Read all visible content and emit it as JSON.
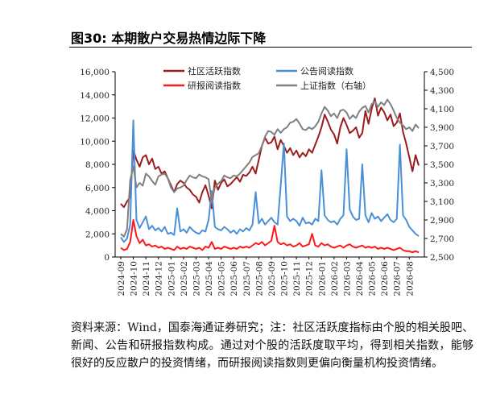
{
  "title": "图30: 本期散户交易热情边际下降",
  "chart_data": {
    "type": "line",
    "categories": [
      "2024-09",
      null,
      null,
      null,
      "2024-10",
      null,
      null,
      null,
      "2024-11",
      null,
      null,
      null,
      "2024-12",
      null,
      null,
      null,
      "2025-01",
      null,
      null,
      null,
      "2025-02",
      null,
      null,
      null,
      "2025-03",
      null,
      null,
      null,
      "2025-04",
      null,
      null,
      null,
      "2025-05",
      null,
      null,
      null,
      "2025-06",
      null,
      null,
      null,
      "2025-07",
      null,
      null,
      null,
      "2025-08",
      null,
      null,
      null,
      "2025-09",
      null,
      null,
      null,
      "2025-10",
      null,
      null,
      null,
      "2025-11",
      null,
      null,
      null,
      "2025-12",
      null,
      null,
      null,
      "2026-01",
      null,
      null,
      null,
      "2026-02",
      null,
      null,
      null,
      "2026-03",
      null,
      null,
      null,
      "2026-04",
      null,
      null,
      null,
      "2026-05",
      null,
      null,
      null,
      "2026-06",
      null,
      null,
      null,
      "2026-07",
      null,
      null,
      null,
      "2026-08",
      null,
      null,
      null
    ],
    "series": [
      {
        "name": "社区活跃指数",
        "color": "#9b1c1c",
        "values": [
          4600,
          4300,
          4800,
          5200,
          9200,
          8400,
          7800,
          8600,
          8800,
          8000,
          8500,
          7600,
          7800,
          7200,
          7400,
          6800,
          6200,
          5600,
          6300,
          6600,
          6400,
          6000,
          5800,
          5400,
          5200,
          4700,
          5600,
          6200,
          5300,
          4200,
          6600,
          5800,
          6400,
          6700,
          6100,
          6300,
          6600,
          6900,
          6500,
          7100,
          7000,
          7300,
          7800,
          7200,
          8400,
          9600,
          10300,
          9800,
          9900,
          10400,
          9300,
          10100,
          9600,
          9000,
          9400,
          8800,
          9200,
          8600,
          9000,
          8700,
          9300,
          9000,
          9700,
          10400,
          11200,
          12300,
          11700,
          11000,
          10600,
          9800,
          11200,
          12000,
          11400,
          10700,
          10900,
          11200,
          10300,
          10700,
          12600,
          11500,
          12800,
          13700,
          12200,
          12900,
          12500,
          11800,
          12300,
          11300,
          11600,
          12400,
          10800,
          9800,
          8600,
          7400,
          8800,
          7900
        ]
      },
      {
        "name": "公告阅读指数",
        "color": "#4a90d9",
        "values": [
          1700,
          1300,
          1600,
          2800,
          11800,
          3200,
          2500,
          3000,
          3500,
          2400,
          2700,
          2300,
          2500,
          2200,
          2600,
          2000,
          2100,
          1900,
          4200,
          2200,
          2400,
          2100,
          2600,
          2300,
          2100,
          2000,
          2300,
          2200,
          3200,
          5700,
          2600,
          2400,
          2300,
          2600,
          2400,
          2100,
          2300,
          2000,
          2400,
          2200,
          2500,
          2300,
          2800,
          5600,
          2900,
          3300,
          2800,
          3100,
          3400,
          3000,
          2800,
          6200,
          9800,
          3500,
          3100,
          3300,
          3100,
          2700,
          3400,
          2900,
          3000,
          2800,
          3300,
          3100,
          7500,
          3600,
          3200,
          3000,
          3100,
          2800,
          3300,
          3600,
          9300,
          4100,
          3500,
          3200,
          3300,
          8000,
          3600,
          3000,
          3800,
          3300,
          3500,
          3100,
          3400,
          3700,
          3200,
          3000,
          3300,
          9700,
          3600,
          3200,
          2600,
          2300,
          2000,
          1800
        ]
      },
      {
        "name": "研报阅读指数",
        "color": "#ff1a1a",
        "values": [
          800,
          600,
          700,
          1300,
          3200,
          1800,
          1200,
          1500,
          1000,
          1100,
          900,
          1000,
          800,
          900,
          700,
          800,
          700,
          600,
          900,
          700,
          800,
          700,
          900,
          800,
          700,
          800,
          600,
          900,
          800,
          1300,
          700,
          800,
          700,
          900,
          800,
          700,
          800,
          700,
          900,
          800,
          900,
          800,
          1000,
          1200,
          1100,
          1300,
          1000,
          1200,
          1400,
          2700,
          1300,
          1100,
          1200,
          1000,
          1100,
          900,
          1000,
          1200,
          900,
          1000,
          1100,
          2000,
          1000,
          900,
          1200,
          1000,
          1100,
          900,
          800,
          900,
          1000,
          800,
          1000,
          1100,
          900,
          800,
          900,
          1000,
          800,
          900,
          800,
          900,
          700,
          800,
          700,
          800,
          700,
          600,
          700,
          800,
          600,
          500,
          500,
          400,
          500,
          400
        ]
      },
      {
        "name": "上证指数（右轴）",
        "color": "#808080",
        "axis": "y2",
        "values": [
          2750,
          2720,
          2800,
          3330,
          3480,
          3250,
          3300,
          3270,
          3400,
          3370,
          3320,
          3280,
          3370,
          3390,
          3400,
          3350,
          3250,
          3200,
          3240,
          3250,
          3270,
          3330,
          3380,
          3360,
          3350,
          3390,
          3370,
          3360,
          3340,
          3100,
          3250,
          3290,
          3320,
          3380,
          3360,
          3350,
          3380,
          3370,
          3400,
          3440,
          3480,
          3520,
          3580,
          3600,
          3620,
          3700,
          3800,
          3860,
          3850,
          3820,
          3880,
          3840,
          3880,
          3900,
          3950,
          3960,
          3990,
          3940,
          3880,
          3870,
          3900,
          3880,
          3910,
          3960,
          4050,
          4120,
          4080,
          4020,
          4050,
          4000,
          4080,
          4090,
          4060,
          3990,
          4030,
          4000,
          4070,
          4110,
          4130,
          4060,
          4150,
          4180,
          4120,
          4170,
          4140,
          4200,
          4150,
          4080,
          4000,
          3950,
          3920,
          3880,
          3900,
          3860,
          3930,
          3890
        ]
      }
    ],
    "ylim": [
      0,
      16000
    ],
    "yticks": [
      0,
      {
        "value": 2000,
        "label": "2,000"
      },
      {
        "value": 4000,
        "label": "4,000"
      },
      {
        "value": 6000,
        "label": "6,000"
      },
      {
        "value": 8000,
        "label": "8,000"
      },
      {
        "value": 10000,
        "label": "10,000"
      },
      {
        "value": 12000,
        "label": "12,000"
      },
      {
        "value": 14000,
        "label": "14,000"
      },
      {
        "value": 16000,
        "label": "16,000"
      }
    ],
    "y2lim": [
      2500,
      4500
    ],
    "y2ticks": [
      {
        "value": 2500,
        "label": "2,500"
      },
      {
        "value": 2700,
        "label": "2,700"
      },
      {
        "value": 2900,
        "label": "2,900"
      },
      {
        "value": 3100,
        "label": "3,100"
      },
      {
        "value": 3300,
        "label": "3,300"
      },
      {
        "value": 3500,
        "label": "3,500"
      },
      {
        "value": 3700,
        "label": "3,700"
      },
      {
        "value": 3900,
        "label": "3,900"
      },
      {
        "value": 4100,
        "label": "4,100"
      },
      {
        "value": 4300,
        "label": "4,300"
      },
      {
        "value": 4500,
        "label": "4,500"
      }
    ],
    "grid": false
  },
  "source": "资料来源：Wind，国泰海通证券研究；注：社区活跃度指标由个股的相关股吧、新闻、公告和研报指数构成。通过对个股的活跃度取平均，得到相关指数，能够很好的反应散户的投资情绪，而研报阅读指数则更偏向衡量机构投资情绪。"
}
